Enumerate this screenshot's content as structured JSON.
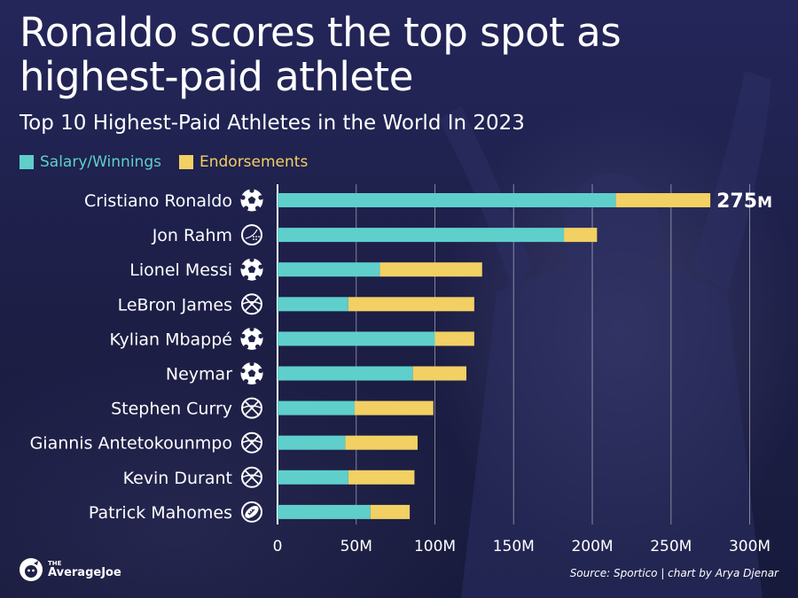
{
  "colors": {
    "background": "#1f2148",
    "salary": "#5fcfcb",
    "endorsements": "#f2d063",
    "text": "#ffffff",
    "grid": "#ffffff"
  },
  "header": {
    "title": "Ronaldo scores the top spot as highest-paid athlete",
    "subtitle": "Top 10 Highest-Paid Athletes in the World In 2023"
  },
  "footer": {
    "logo_prefix": "THE",
    "logo_name": "AverageJoe",
    "source": "Source: Sportico | chart by Arya Djenar"
  },
  "chart_data": {
    "type": "bar",
    "orientation": "horizontal",
    "stacked": true,
    "title": "Top 10 Highest-Paid Athletes in the World In 2023",
    "categories": [
      "Cristiano Ronaldo",
      "Jon Rahm",
      "Lionel Messi",
      "LeBron James",
      "Kylian Mbappé",
      "Neymar",
      "Stephen Curry",
      "Giannis Antetokounmpo",
      "Kevin Durant",
      "Patrick Mahomes"
    ],
    "category_icons": [
      "soccer-ball-icon",
      "golf-ball-icon",
      "soccer-ball-icon",
      "basketball-icon",
      "soccer-ball-icon",
      "soccer-ball-icon",
      "basketball-icon",
      "basketball-icon",
      "basketball-icon",
      "american-football-icon"
    ],
    "series": [
      {
        "name": "Salary/Winnings",
        "color": "#5fcfcb",
        "values": [
          215,
          182,
          65,
          45,
          100,
          86,
          49,
          43,
          45,
          59
        ]
      },
      {
        "name": "Endorsements",
        "color": "#f2d063",
        "values": [
          60,
          21,
          65,
          80,
          25,
          34,
          50,
          46,
          42,
          25
        ]
      }
    ],
    "annotations": [
      {
        "category": "Cristiano Ronaldo",
        "label": "275",
        "unit": "M"
      }
    ],
    "x_ticks": [
      {
        "value": 0,
        "label": "0"
      },
      {
        "value": 50,
        "label": "50M"
      },
      {
        "value": 100,
        "label": "100M"
      },
      {
        "value": 150,
        "label": "150M"
      },
      {
        "value": 200,
        "label": "200M"
      },
      {
        "value": 250,
        "label": "250M"
      },
      {
        "value": 300,
        "label": "300M"
      }
    ],
    "xlim": [
      0,
      300
    ],
    "grid": true,
    "legend_position": "top-left"
  }
}
